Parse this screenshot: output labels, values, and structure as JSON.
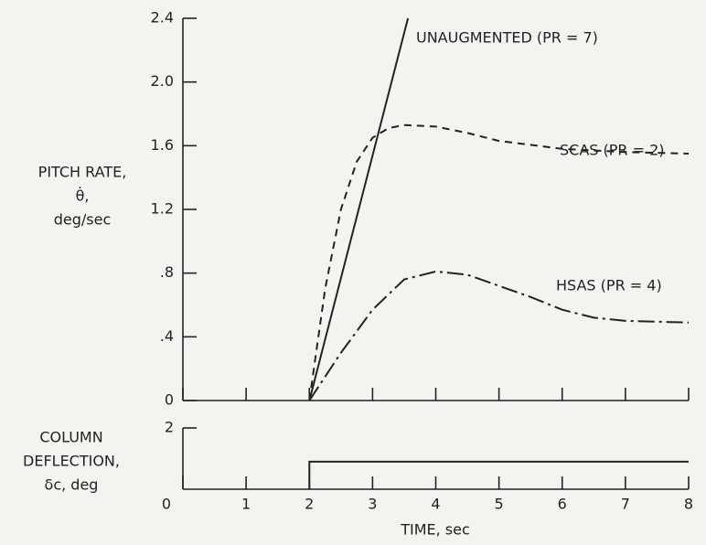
{
  "chart_data": [
    {
      "type": "line",
      "ylabel_lines": [
        "PITCH RATE,",
        "θ̇,",
        "deg/sec"
      ],
      "xlim": [
        0,
        8
      ],
      "ylim": [
        0,
        2.4
      ],
      "yticks": [
        0,
        {
          "value": 0.4,
          "label": ".4"
        },
        {
          "value": 0.8,
          "label": ".8"
        },
        1.2,
        1.6,
        {
          "value": 2.0,
          "label": "2.0"
        },
        2.4
      ],
      "series": [
        {
          "name": "UNAUGMENTED (PR = 7)",
          "color": "#222222",
          "style": "solid",
          "x": [
            2,
            3.56
          ],
          "values": [
            0,
            2.4
          ]
        },
        {
          "name": "SCAS (PR = 2)",
          "color": "#222222",
          "style": "dashed",
          "x": [
            2,
            2.25,
            2.5,
            2.75,
            3,
            3.25,
            3.5,
            4,
            4.5,
            5,
            6,
            7,
            8
          ],
          "values": [
            0,
            0.7,
            1.2,
            1.5,
            1.65,
            1.71,
            1.73,
            1.72,
            1.68,
            1.63,
            1.58,
            1.56,
            1.55
          ]
        },
        {
          "name": "HSAS (PR = 4)",
          "color": "#222222",
          "style": "dashdot",
          "x": [
            2,
            2.5,
            3,
            3.5,
            4,
            4.5,
            5,
            5.5,
            6,
            6.5,
            7,
            8
          ],
          "values": [
            0,
            0.3,
            0.57,
            0.76,
            0.81,
            0.79,
            0.72,
            0.65,
            0.57,
            0.52,
            0.5,
            0.49
          ]
        }
      ]
    },
    {
      "type": "line",
      "ylabel_lines": [
        "COLUMN",
        "DEFLECTION,",
        "δc, deg"
      ],
      "xlabel": "TIME, sec",
      "xlim": [
        0,
        8
      ],
      "ylim": [
        0,
        2
      ],
      "xticks": [
        0,
        1,
        2,
        3,
        4,
        5,
        6,
        7,
        8
      ],
      "yticks": [
        2
      ],
      "series": [
        {
          "name": null,
          "color": "#222222",
          "style": "solid",
          "x": [
            2,
            2,
            8
          ],
          "values": [
            0,
            0.9,
            0.9
          ]
        }
      ]
    }
  ]
}
